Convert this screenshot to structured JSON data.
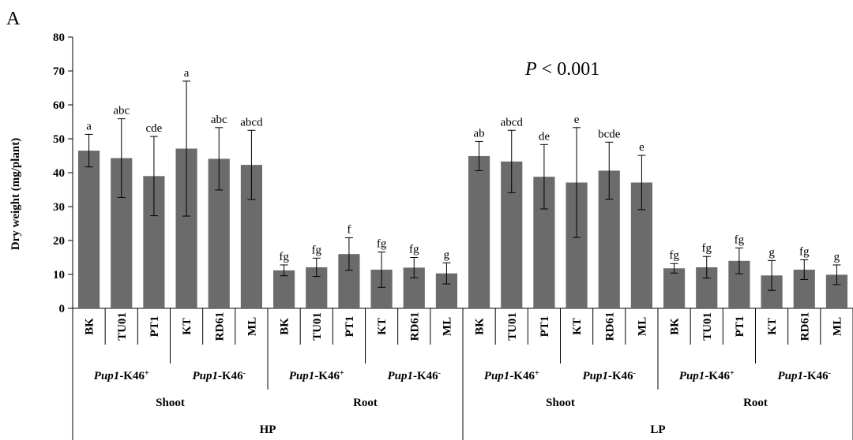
{
  "panel_label": "A",
  "annotation": {
    "italic": "P",
    "rest": " < 0.001"
  },
  "chart_data": {
    "type": "bar",
    "ylabel": "Dry weight  (mg/plant)",
    "ylim": [
      0,
      80
    ],
    "yticks": [
      0,
      10,
      20,
      30,
      40,
      50,
      60,
      70,
      80
    ],
    "grid": false,
    "bar_color": "#6b6b6b",
    "categories": [
      "BK",
      "TU01",
      "PT1",
      "KT",
      "RD61",
      "ML",
      "BK",
      "TU01",
      "PT1",
      "KT",
      "RD61",
      "ML",
      "BK",
      "TU01",
      "PT1",
      "KT",
      "RD61",
      "ML",
      "BK",
      "TU01",
      "PT1",
      "KT",
      "RD61",
      "ML"
    ],
    "values": [
      46.5,
      44.3,
      39.0,
      47.1,
      44.1,
      42.3,
      11.2,
      12.1,
      16.0,
      11.4,
      12.0,
      10.3,
      44.9,
      43.3,
      38.8,
      37.1,
      40.6,
      37.1,
      11.8,
      12.1,
      14.0,
      9.7,
      11.4,
      9.9
    ],
    "errors": [
      4.8,
      11.6,
      11.7,
      19.9,
      9.2,
      10.2,
      1.6,
      2.7,
      4.8,
      5.2,
      3.0,
      3.1,
      4.3,
      9.2,
      9.5,
      16.2,
      8.4,
      8.0,
      1.4,
      3.2,
      3.8,
      4.4,
      2.9,
      2.9
    ],
    "significance": [
      "a",
      "abc",
      "cde",
      "a",
      "abc",
      "abcd",
      "fg",
      "fg",
      "f",
      "fg",
      "fg",
      "g",
      "ab",
      "abcd",
      "de",
      "e",
      "bcde",
      "e",
      "fg",
      "fg",
      "fg",
      "g",
      "fg",
      "g"
    ],
    "genotype_groups": [
      {
        "italic": "Pup1",
        "rest": "-K46",
        "sup": "+"
      },
      {
        "italic": "Pup1",
        "rest": "-K46",
        "sup": "-"
      },
      {
        "italic": "Pup1",
        "rest": "-K46",
        "sup": "+"
      },
      {
        "italic": "Pup1",
        "rest": "-K46",
        "sup": "-"
      },
      {
        "italic": "Pup1",
        "rest": "-K46",
        "sup": "+"
      },
      {
        "italic": "Pup1",
        "rest": "-K46",
        "sup": "-"
      },
      {
        "italic": "Pup1",
        "rest": "-K46",
        "sup": "+"
      },
      {
        "italic": "Pup1",
        "rest": "-K46",
        "sup": "-"
      }
    ],
    "tissue_groups": [
      "Shoot",
      "Root",
      "Shoot",
      "Root"
    ],
    "treatment_groups": [
      "HP",
      "LP"
    ]
  }
}
